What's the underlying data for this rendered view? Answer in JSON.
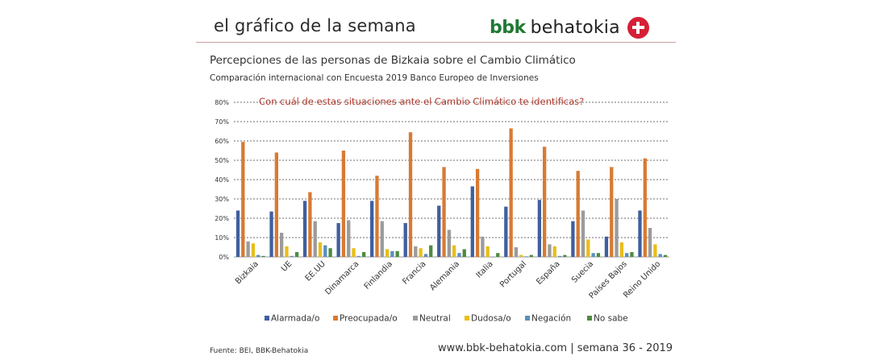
{
  "header": {
    "title": "el gráfico de la semana",
    "brand_short": "bbk",
    "brand_name": "behatokia",
    "brand_color": "#1f7a34",
    "cross_color": "#d51f36"
  },
  "footer": {
    "source": "Fuente:  BEI, BBK-Behatokia",
    "site": "www.bbk-behatokia.com",
    "separator": " | ",
    "week": "semana 36 - 2019"
  },
  "chart_data": {
    "type": "bar",
    "title": "Percepciones de las personas de Bizkaia sobre el Cambio Climático",
    "subtitle": "Comparación internacional con Encuesta 2019 Banco Europeo de Inversiones",
    "annotation": "Con cuál de estas situaciones ante el Cambio Climático te identificas?",
    "xlabel": "",
    "ylabel": "",
    "ylim": [
      0,
      80
    ],
    "yticks": [
      0,
      10,
      20,
      30,
      40,
      50,
      60,
      70,
      80
    ],
    "ytick_labels": [
      "0%",
      "10%",
      "20%",
      "30%",
      "40%",
      "50%",
      "60%",
      "70%",
      "80%"
    ],
    "grid": true,
    "legend_position": "bottom",
    "categories": [
      "Bizkaia",
      "UE",
      "EE.UU",
      "Dinamarca",
      "Finlandia",
      "Francia",
      "Alemania",
      "Italia",
      "Portugal",
      "España",
      "Suecia",
      "Países Bajos",
      "Reino Unido"
    ],
    "series": [
      {
        "name": "Alarmada/o",
        "color": "#3f5f9f",
        "values": [
          24,
          23.5,
          29,
          17.5,
          29,
          17.5,
          26.5,
          36.5,
          26,
          29.5,
          18.5,
          10.5,
          24
        ]
      },
      {
        "name": "Preocupada/o",
        "color": "#d87a33",
        "values": [
          59.5,
          54,
          33.5,
          55,
          42,
          64.5,
          46.5,
          45.5,
          66.5,
          57,
          44.5,
          46.5,
          51
        ]
      },
      {
        "name": "Neutral",
        "color": "#9b9b9b",
        "values": [
          8,
          12.5,
          18.5,
          19,
          18.5,
          5.5,
          14,
          10.5,
          5,
          6.5,
          24,
          30,
          15
        ]
      },
      {
        "name": "Dudosa/o",
        "color": "#e8be1a",
        "values": [
          7,
          5.5,
          7.5,
          4.5,
          4,
          4.5,
          6,
          5.5,
          1,
          5.5,
          9,
          7.5,
          6.5
        ]
      },
      {
        "name": "Negación",
        "color": "#5b8fbf",
        "values": [
          1,
          0.5,
          6,
          0.5,
          3,
          1.5,
          2,
          0,
          0.3,
          0.5,
          2,
          2,
          1.5
        ]
      },
      {
        "name": "No sabe",
        "color": "#4e8b40",
        "values": [
          0.5,
          2.5,
          4.5,
          2.5,
          3,
          6,
          4,
          2,
          1,
          1,
          2,
          2.5,
          1
        ]
      }
    ]
  }
}
